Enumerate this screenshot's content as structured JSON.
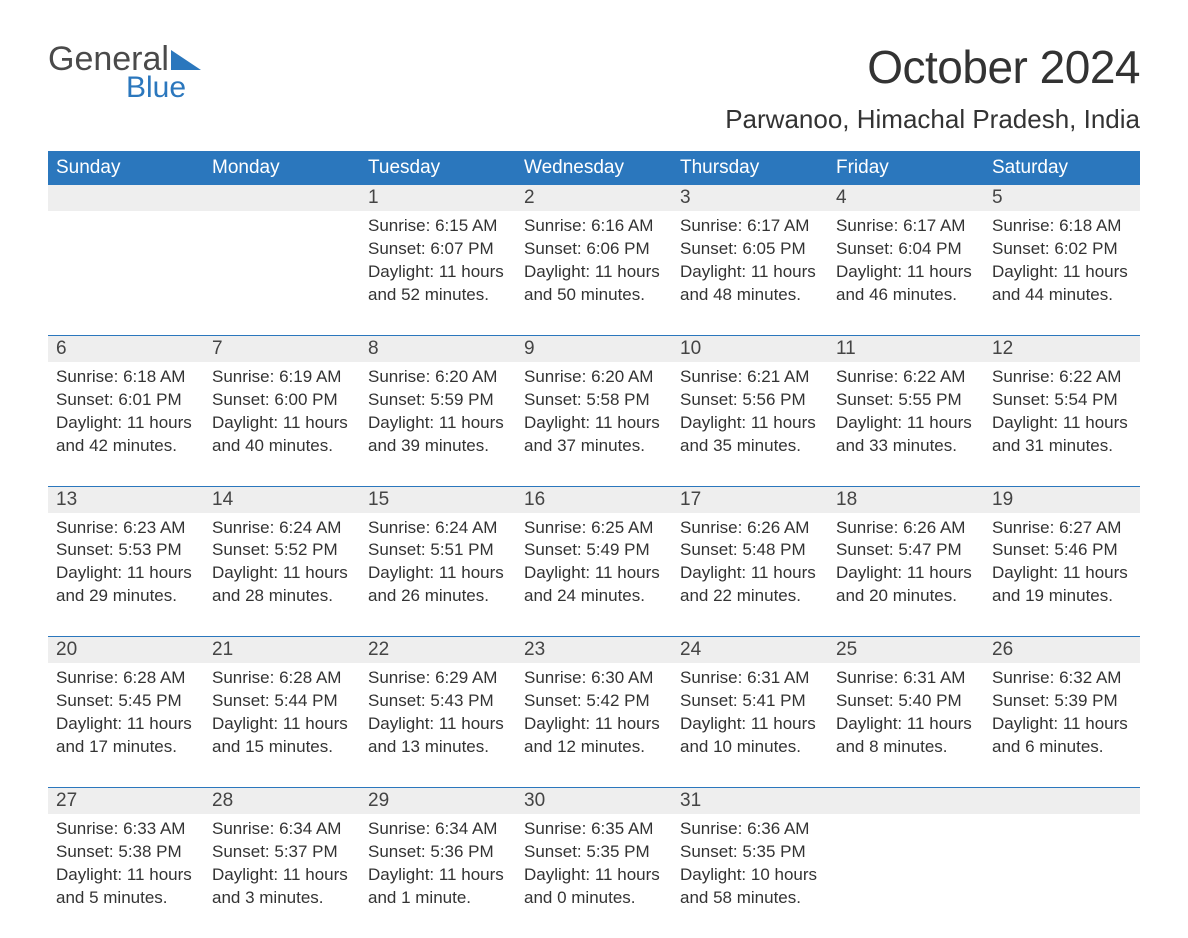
{
  "brand": {
    "line1": "General",
    "line2": "Blue"
  },
  "title": "October 2024",
  "location": "Parwanoo, Himachal Pradesh, India",
  "colors": {
    "header_bg": "#2b77bd",
    "header_text": "#ffffff",
    "daynum_bg": "#eeeeee",
    "text": "#333333",
    "week_border": "#2b77bd",
    "page_bg": "#ffffff"
  },
  "fonts": {
    "title_size_pt": 34,
    "location_size_pt": 20,
    "header_size_pt": 14,
    "daynum_size_pt": 14,
    "body_size_pt": 13
  },
  "layout": {
    "columns": 7,
    "rows": 5
  },
  "weekdays": [
    "Sunday",
    "Monday",
    "Tuesday",
    "Wednesday",
    "Thursday",
    "Friday",
    "Saturday"
  ],
  "weeks": [
    [
      null,
      null,
      {
        "n": "1",
        "sr": "Sunrise: 6:15 AM",
        "ss": "Sunset: 6:07 PM",
        "d1": "Daylight: 11 hours",
        "d2": "and 52 minutes."
      },
      {
        "n": "2",
        "sr": "Sunrise: 6:16 AM",
        "ss": "Sunset: 6:06 PM",
        "d1": "Daylight: 11 hours",
        "d2": "and 50 minutes."
      },
      {
        "n": "3",
        "sr": "Sunrise: 6:17 AM",
        "ss": "Sunset: 6:05 PM",
        "d1": "Daylight: 11 hours",
        "d2": "and 48 minutes."
      },
      {
        "n": "4",
        "sr": "Sunrise: 6:17 AM",
        "ss": "Sunset: 6:04 PM",
        "d1": "Daylight: 11 hours",
        "d2": "and 46 minutes."
      },
      {
        "n": "5",
        "sr": "Sunrise: 6:18 AM",
        "ss": "Sunset: 6:02 PM",
        "d1": "Daylight: 11 hours",
        "d2": "and 44 minutes."
      }
    ],
    [
      {
        "n": "6",
        "sr": "Sunrise: 6:18 AM",
        "ss": "Sunset: 6:01 PM",
        "d1": "Daylight: 11 hours",
        "d2": "and 42 minutes."
      },
      {
        "n": "7",
        "sr": "Sunrise: 6:19 AM",
        "ss": "Sunset: 6:00 PM",
        "d1": "Daylight: 11 hours",
        "d2": "and 40 minutes."
      },
      {
        "n": "8",
        "sr": "Sunrise: 6:20 AM",
        "ss": "Sunset: 5:59 PM",
        "d1": "Daylight: 11 hours",
        "d2": "and 39 minutes."
      },
      {
        "n": "9",
        "sr": "Sunrise: 6:20 AM",
        "ss": "Sunset: 5:58 PM",
        "d1": "Daylight: 11 hours",
        "d2": "and 37 minutes."
      },
      {
        "n": "10",
        "sr": "Sunrise: 6:21 AM",
        "ss": "Sunset: 5:56 PM",
        "d1": "Daylight: 11 hours",
        "d2": "and 35 minutes."
      },
      {
        "n": "11",
        "sr": "Sunrise: 6:22 AM",
        "ss": "Sunset: 5:55 PM",
        "d1": "Daylight: 11 hours",
        "d2": "and 33 minutes."
      },
      {
        "n": "12",
        "sr": "Sunrise: 6:22 AM",
        "ss": "Sunset: 5:54 PM",
        "d1": "Daylight: 11 hours",
        "d2": "and 31 minutes."
      }
    ],
    [
      {
        "n": "13",
        "sr": "Sunrise: 6:23 AM",
        "ss": "Sunset: 5:53 PM",
        "d1": "Daylight: 11 hours",
        "d2": "and 29 minutes."
      },
      {
        "n": "14",
        "sr": "Sunrise: 6:24 AM",
        "ss": "Sunset: 5:52 PM",
        "d1": "Daylight: 11 hours",
        "d2": "and 28 minutes."
      },
      {
        "n": "15",
        "sr": "Sunrise: 6:24 AM",
        "ss": "Sunset: 5:51 PM",
        "d1": "Daylight: 11 hours",
        "d2": "and 26 minutes."
      },
      {
        "n": "16",
        "sr": "Sunrise: 6:25 AM",
        "ss": "Sunset: 5:49 PM",
        "d1": "Daylight: 11 hours",
        "d2": "and 24 minutes."
      },
      {
        "n": "17",
        "sr": "Sunrise: 6:26 AM",
        "ss": "Sunset: 5:48 PM",
        "d1": "Daylight: 11 hours",
        "d2": "and 22 minutes."
      },
      {
        "n": "18",
        "sr": "Sunrise: 6:26 AM",
        "ss": "Sunset: 5:47 PM",
        "d1": "Daylight: 11 hours",
        "d2": "and 20 minutes."
      },
      {
        "n": "19",
        "sr": "Sunrise: 6:27 AM",
        "ss": "Sunset: 5:46 PM",
        "d1": "Daylight: 11 hours",
        "d2": "and 19 minutes."
      }
    ],
    [
      {
        "n": "20",
        "sr": "Sunrise: 6:28 AM",
        "ss": "Sunset: 5:45 PM",
        "d1": "Daylight: 11 hours",
        "d2": "and 17 minutes."
      },
      {
        "n": "21",
        "sr": "Sunrise: 6:28 AM",
        "ss": "Sunset: 5:44 PM",
        "d1": "Daylight: 11 hours",
        "d2": "and 15 minutes."
      },
      {
        "n": "22",
        "sr": "Sunrise: 6:29 AM",
        "ss": "Sunset: 5:43 PM",
        "d1": "Daylight: 11 hours",
        "d2": "and 13 minutes."
      },
      {
        "n": "23",
        "sr": "Sunrise: 6:30 AM",
        "ss": "Sunset: 5:42 PM",
        "d1": "Daylight: 11 hours",
        "d2": "and 12 minutes."
      },
      {
        "n": "24",
        "sr": "Sunrise: 6:31 AM",
        "ss": "Sunset: 5:41 PM",
        "d1": "Daylight: 11 hours",
        "d2": "and 10 minutes."
      },
      {
        "n": "25",
        "sr": "Sunrise: 6:31 AM",
        "ss": "Sunset: 5:40 PM",
        "d1": "Daylight: 11 hours",
        "d2": "and 8 minutes."
      },
      {
        "n": "26",
        "sr": "Sunrise: 6:32 AM",
        "ss": "Sunset: 5:39 PM",
        "d1": "Daylight: 11 hours",
        "d2": "and 6 minutes."
      }
    ],
    [
      {
        "n": "27",
        "sr": "Sunrise: 6:33 AM",
        "ss": "Sunset: 5:38 PM",
        "d1": "Daylight: 11 hours",
        "d2": "and 5 minutes."
      },
      {
        "n": "28",
        "sr": "Sunrise: 6:34 AM",
        "ss": "Sunset: 5:37 PM",
        "d1": "Daylight: 11 hours",
        "d2": "and 3 minutes."
      },
      {
        "n": "29",
        "sr": "Sunrise: 6:34 AM",
        "ss": "Sunset: 5:36 PM",
        "d1": "Daylight: 11 hours",
        "d2": "and 1 minute."
      },
      {
        "n": "30",
        "sr": "Sunrise: 6:35 AM",
        "ss": "Sunset: 5:35 PM",
        "d1": "Daylight: 11 hours",
        "d2": "and 0 minutes."
      },
      {
        "n": "31",
        "sr": "Sunrise: 6:36 AM",
        "ss": "Sunset: 5:35 PM",
        "d1": "Daylight: 10 hours",
        "d2": "and 58 minutes."
      },
      null,
      null
    ]
  ]
}
